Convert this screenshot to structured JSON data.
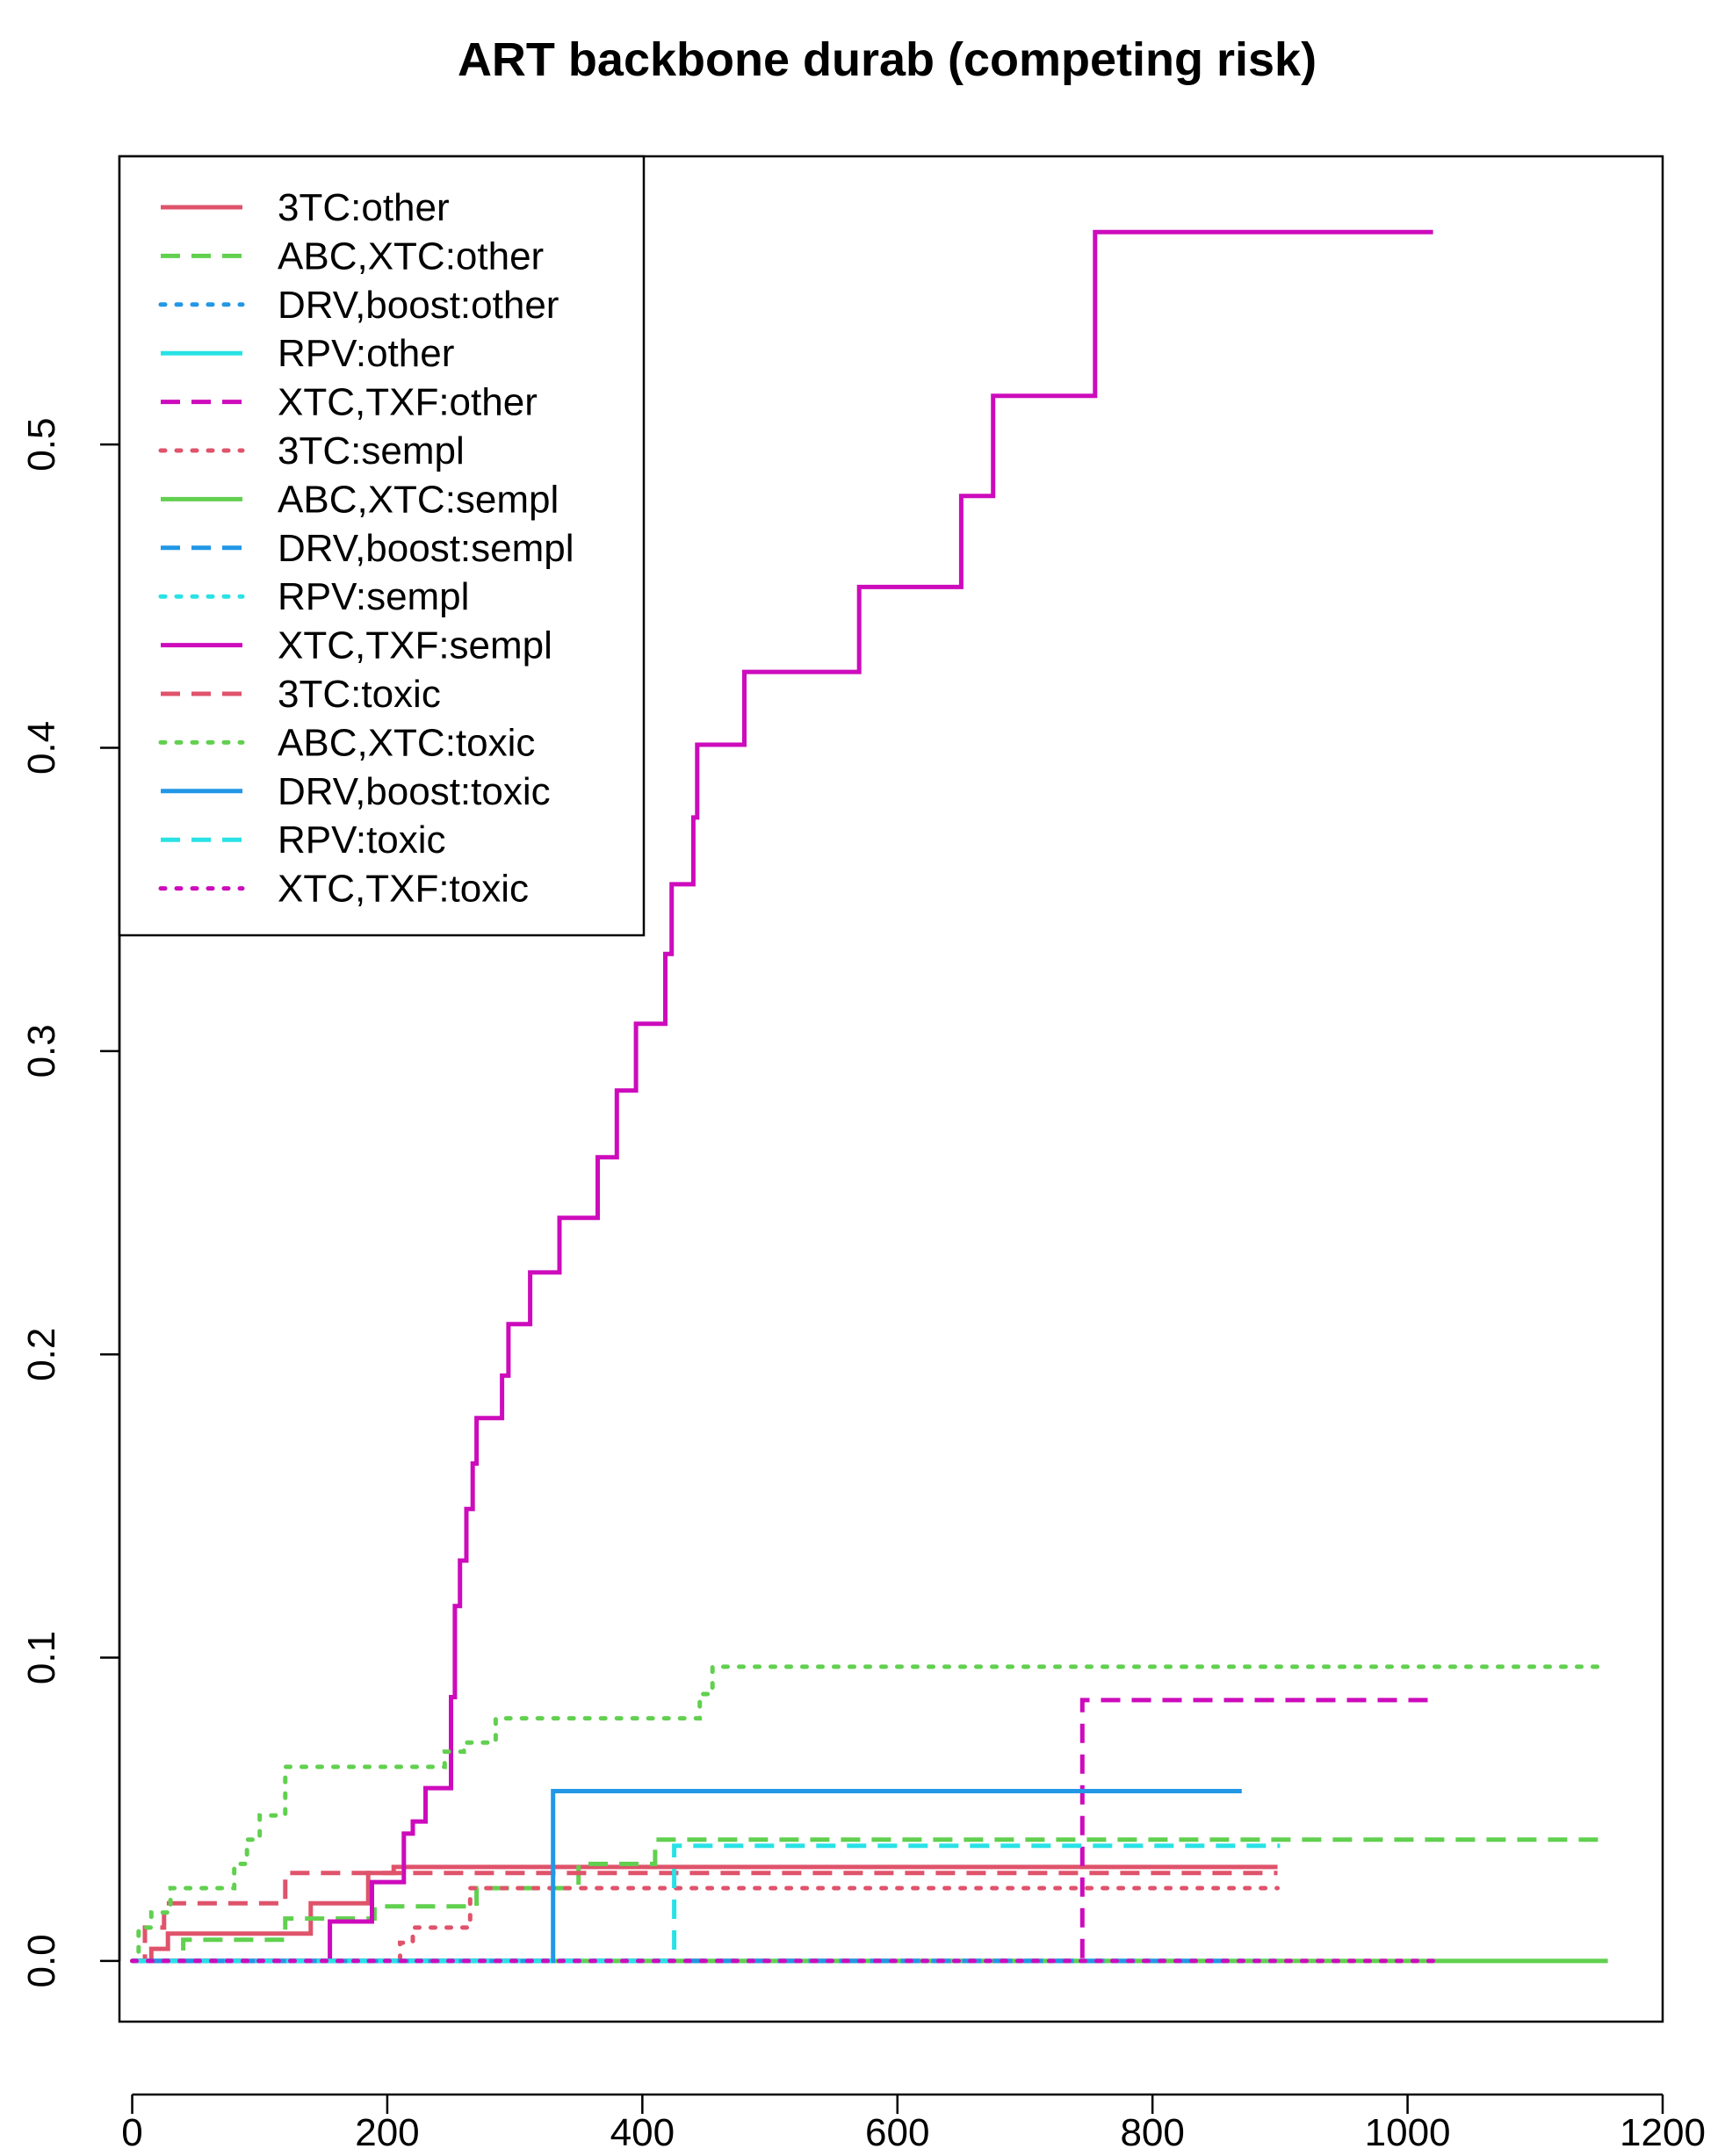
{
  "chart_data": {
    "type": "line",
    "subtype": "step",
    "title": "ART backbone durab (competing risk)",
    "xlabel": "",
    "ylabel": "",
    "xlim": [
      -10,
      1200
    ],
    "ylim": [
      -0.02,
      0.595
    ],
    "x_ticks": [
      0,
      200,
      400,
      600,
      800,
      1000,
      1200
    ],
    "y_ticks": [
      0.0,
      0.1,
      0.2,
      0.3,
      0.4,
      0.5
    ],
    "x_tick_labels": [
      "0",
      "200",
      "400",
      "600",
      "800",
      "1000",
      "1200"
    ],
    "y_tick_labels": [
      "0.0",
      "0.1",
      "0.2",
      "0.3",
      "0.4",
      "0.5"
    ],
    "legend_position": "top-left",
    "series": [
      {
        "name": "3TC:other",
        "color": "#DF536B",
        "dash": "solid",
        "x": [
          0,
          15,
          28,
          140,
          185,
          205,
          898
        ],
        "y": [
          0,
          0.004,
          0.009,
          0.019,
          0.029,
          0.031,
          0.031
        ]
      },
      {
        "name": "ABC,XTC:other",
        "color": "#61D04F",
        "dash": "dashed",
        "x": [
          0,
          40,
          120,
          190,
          270,
          350,
          410,
          1157
        ],
        "y": [
          0,
          0.007,
          0.014,
          0.018,
          0.024,
          0.032,
          0.04,
          0.04
        ]
      },
      {
        "name": "DRV,boost:other",
        "color": "#2297E6",
        "dash": "dotted",
        "x": [
          0,
          870
        ],
        "y": [
          0,
          0
        ]
      },
      {
        "name": "RPV:other",
        "color": "#28E2E5",
        "dash": "solid",
        "x": [
          0,
          900
        ],
        "y": [
          0,
          0
        ]
      },
      {
        "name": "XTC,TXF:other",
        "color": "#CD0BBC",
        "dash": "dashed",
        "x": [
          0,
          745,
          1020
        ],
        "y": [
          0,
          0.086,
          0.086
        ]
      },
      {
        "name": "3TC:sempl",
        "color": "#DF536B",
        "dash": "dotted",
        "x": [
          0,
          210,
          220,
          265,
          898
        ],
        "y": [
          0,
          0.006,
          0.011,
          0.024,
          0.024
        ]
      },
      {
        "name": "ABC,XTC:sempl",
        "color": "#61D04F",
        "dash": "solid",
        "x": [
          0,
          1157
        ],
        "y": [
          0,
          0
        ]
      },
      {
        "name": "DRV,boost:sempl",
        "color": "#2297E6",
        "dash": "dashed",
        "x": [
          0,
          870
        ],
        "y": [
          0,
          0
        ]
      },
      {
        "name": "RPV:sempl",
        "color": "#28E2E5",
        "dash": "dotted",
        "x": [
          0,
          900
        ],
        "y": [
          0,
          0
        ]
      },
      {
        "name": "XTC,TXF:sempl",
        "color": "#CD0BBC",
        "dash": "solid",
        "x": [
          0,
          155,
          188,
          213,
          220,
          230,
          250,
          253,
          257,
          262,
          267,
          270,
          275,
          290,
          295,
          312,
          335,
          365,
          380,
          395,
          418,
          423,
          440,
          443,
          480,
          570,
          650,
          675,
          755,
          1020
        ],
        "y": [
          0,
          0.013,
          0.026,
          0.042,
          0.046,
          0.057,
          0.087,
          0.117,
          0.132,
          0.149,
          0.164,
          0.179,
          0.179,
          0.193,
          0.21,
          0.227,
          0.245,
          0.265,
          0.287,
          0.309,
          0.332,
          0.355,
          0.377,
          0.401,
          0.425,
          0.453,
          0.483,
          0.516,
          0.57,
          0.57
        ]
      },
      {
        "name": "3TC:toxic",
        "color": "#DF536B",
        "dash": "dashed",
        "x": [
          0,
          10,
          25,
          120,
          220,
          898
        ],
        "y": [
          0,
          0.011,
          0.019,
          0.029,
          0.029,
          0.029
        ]
      },
      {
        "name": "ABC,XTC:toxic",
        "color": "#61D04F",
        "dash": "dotted",
        "x": [
          0,
          5,
          15,
          30,
          80,
          90,
          100,
          120,
          245,
          260,
          285,
          445,
          455,
          1157
        ],
        "y": [
          0,
          0.011,
          0.016,
          0.024,
          0.032,
          0.04,
          0.048,
          0.064,
          0.069,
          0.072,
          0.08,
          0.088,
          0.097,
          0.097
        ]
      },
      {
        "name": "DRV,boost:toxic",
        "color": "#2297E6",
        "dash": "solid",
        "x": [
          0,
          330,
          870
        ],
        "y": [
          0,
          0.056,
          0.056
        ]
      },
      {
        "name": "RPV:toxic",
        "color": "#28E2E5",
        "dash": "dashed",
        "x": [
          0,
          425,
          900
        ],
        "y": [
          0,
          0.038,
          0.038
        ]
      },
      {
        "name": "XTC,TXF:toxic",
        "color": "#CD0BBC",
        "dash": "dotted",
        "x": [
          0,
          1020
        ],
        "y": [
          0,
          0
        ]
      }
    ]
  }
}
